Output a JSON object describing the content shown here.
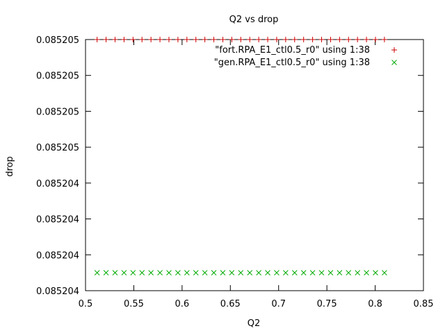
{
  "chart_data": {
    "type": "scatter",
    "title": "Q2 vs drop",
    "xlabel": "Q2",
    "ylabel": "drop",
    "xlim": [
      0.5,
      0.85
    ],
    "ylim": [
      0.0852042,
      0.0852049
    ],
    "grid": false,
    "legend_position": "top-right",
    "x_ticks": [
      0.5,
      0.55,
      0.6,
      0.65,
      0.7,
      0.75,
      0.8,
      0.85
    ],
    "x_tick_labels": [
      "0.5",
      "0.55",
      "0.6",
      "0.65",
      "0.7",
      "0.75",
      "0.8",
      "0.85"
    ],
    "y_ticks": [
      0.0852042,
      0.0852043,
      0.0852044,
      0.0852045,
      0.0852046,
      0.0852047,
      0.0852048,
      0.0852049
    ],
    "y_tick_labels": [
      "0.085204",
      "0.085204",
      "0.085204",
      "0.085204",
      "0.085205",
      "0.085205",
      "0.085205",
      "0.085205"
    ],
    "x": [
      0.512,
      0.5213,
      0.5306,
      0.5399,
      0.5492,
      0.5585,
      0.5678,
      0.5771,
      0.5864,
      0.5957,
      0.605,
      0.6143,
      0.6236,
      0.6329,
      0.6422,
      0.6515,
      0.6608,
      0.6701,
      0.6794,
      0.6887,
      0.698,
      0.7073,
      0.7166,
      0.7259,
      0.7352,
      0.7445,
      0.7538,
      0.7631,
      0.7724,
      0.7817,
      0.791,
      0.8003,
      0.8096
    ],
    "series": [
      {
        "name": "\"fort.RPA_E1_ctl0.5_r0\" using 1:38",
        "marker": "+",
        "color": "#cc0000",
        "y": [
          0.0852049,
          0.0852049,
          0.0852049,
          0.0852049,
          0.0852049,
          0.0852049,
          0.0852049,
          0.0852049,
          0.0852049,
          0.0852049,
          0.0852049,
          0.0852049,
          0.0852049,
          0.0852049,
          0.0852049,
          0.0852049,
          0.0852049,
          0.0852049,
          0.0852049,
          0.0852049,
          0.0852049,
          0.0852049,
          0.0852049,
          0.0852049,
          0.0852049,
          0.0852049,
          0.0852049,
          0.0852049,
          0.0852049,
          0.0852049,
          0.0852049,
          0.0852049,
          0.0852049
        ]
      },
      {
        "name": "\"gen.RPA_E1_ctl0.5_r0\" using 1:38",
        "marker": "x",
        "color": "#00aa00",
        "y": [
          0.08520425,
          0.08520425,
          0.08520425,
          0.08520425,
          0.08520425,
          0.08520425,
          0.08520425,
          0.08520425,
          0.08520425,
          0.08520425,
          0.08520425,
          0.08520425,
          0.08520425,
          0.08520425,
          0.08520425,
          0.08520425,
          0.08520425,
          0.08520425,
          0.08520425,
          0.08520425,
          0.08520425,
          0.08520425,
          0.08520425,
          0.08520425,
          0.08520425,
          0.08520425,
          0.08520425,
          0.08520425,
          0.08520425,
          0.08520425,
          0.08520425,
          0.08520425,
          0.08520425
        ]
      }
    ]
  }
}
